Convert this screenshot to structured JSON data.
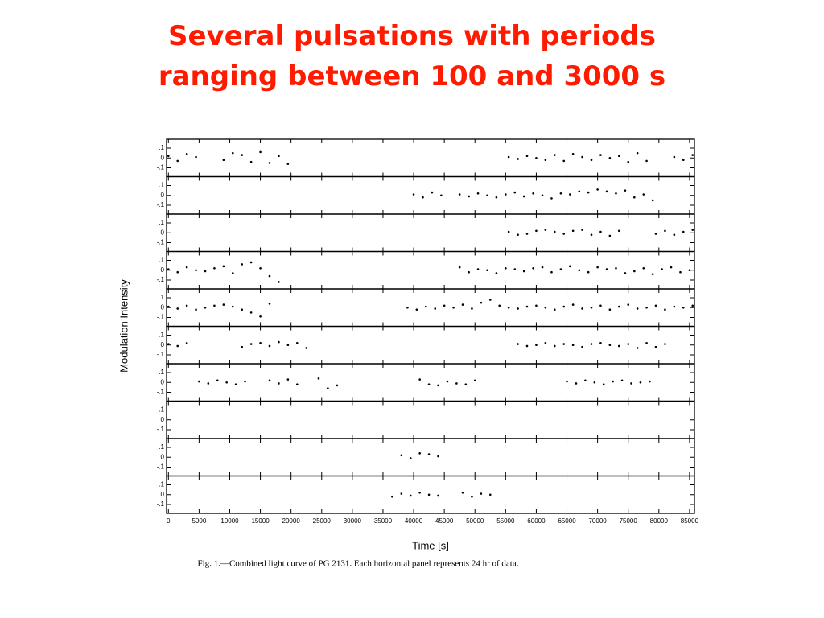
{
  "chart_data": {
    "type": "scatter",
    "title": "Several pulsations with periods ranging between 100 and 3000 s",
    "xlabel": "Time [s]",
    "ylabel": "Modulation Intensity",
    "caption": "Fig. 1.—Combined light curve of PG 2131. Each horizontal panel represents 24 hr of data.",
    "color": "#000000",
    "xlim": [
      -300,
      85800
    ],
    "xticks": [
      0,
      5000,
      10000,
      15000,
      20000,
      25000,
      30000,
      35000,
      40000,
      45000,
      50000,
      55000,
      60000,
      65000,
      70000,
      75000,
      80000,
      85000
    ],
    "ylim": [
      -0.19,
      0.19
    ],
    "yticks": [
      {
        "value": 0.1,
        "label": ".1"
      },
      0,
      {
        "value": -0.1,
        "label": "-.1"
      }
    ],
    "panels": [
      {
        "x": [
          0,
          1500,
          3000,
          4500,
          9000,
          10500,
          12000,
          13500,
          15000,
          16500,
          18000,
          19500,
          55500,
          57000,
          58500,
          60000,
          61500,
          63000,
          64500,
          66000,
          67500,
          69000,
          70500,
          72000,
          73500,
          75000,
          76500,
          78000,
          82500,
          84000,
          85500
        ],
        "y": [
          0.02,
          -0.03,
          0.04,
          0.01,
          -0.02,
          0.05,
          0.03,
          -0.04,
          0.06,
          -0.05,
          0.02,
          -0.06,
          0.01,
          -0.01,
          0.02,
          0,
          -0.02,
          0.03,
          -0.03,
          0.04,
          0.01,
          -0.02,
          0.03,
          0,
          0.02,
          -0.04,
          0.05,
          -0.03,
          0.01,
          -0.02,
          0.03
        ]
      },
      {
        "x": [
          40000,
          41500,
          43000,
          44500,
          47500,
          49000,
          50500,
          52000,
          53500,
          55000,
          56500,
          58000,
          59500,
          61000,
          62500,
          64000,
          65500,
          67000,
          68500,
          70000,
          71500,
          73000,
          74500,
          76000,
          77500,
          79000
        ],
        "y": [
          0.01,
          -0.02,
          0.03,
          0,
          0.01,
          -0.01,
          0.02,
          0,
          -0.02,
          0.01,
          0.03,
          -0.01,
          0.02,
          0,
          -0.03,
          0.02,
          0.01,
          0.04,
          0.03,
          0.06,
          0.04,
          0.02,
          0.05,
          -0.02,
          0.01,
          -0.05
        ]
      },
      {
        "x": [
          55500,
          57000,
          58500,
          60000,
          61500,
          63000,
          64500,
          66000,
          67500,
          69000,
          70500,
          72000,
          73500,
          79500,
          81000,
          82500,
          84000,
          85500
        ],
        "y": [
          0.01,
          -0.02,
          -0.01,
          0.02,
          0.03,
          0.01,
          -0.01,
          0.02,
          0.03,
          -0.02,
          0.01,
          -0.03,
          0.02,
          -0.01,
          0.02,
          -0.02,
          0.01,
          0.03
        ]
      },
      {
        "x": [
          0,
          1500,
          3000,
          4500,
          6000,
          7500,
          9000,
          10500,
          12000,
          13500,
          15000,
          16500,
          18000,
          47500,
          49000,
          50500,
          52000,
          53500,
          55000,
          56500,
          58000,
          59500,
          61000,
          62500,
          64000,
          65500,
          67000,
          68500,
          70000,
          71500,
          73000,
          74500,
          76000,
          77500,
          79000,
          80500,
          82000,
          83500,
          85000
        ],
        "y": [
          0.01,
          -0.02,
          0.03,
          0,
          -0.01,
          0.02,
          0.04,
          -0.03,
          0.06,
          0.08,
          0.02,
          -0.06,
          -0.12,
          0.03,
          -0.02,
          0.01,
          0,
          -0.03,
          0.02,
          0.01,
          -0.01,
          0.02,
          0.03,
          -0.02,
          0.01,
          0.04,
          0,
          -0.02,
          0.03,
          0.01,
          0.02,
          -0.03,
          -0.01,
          0.02,
          -0.04,
          0.01,
          0.03,
          -0.02,
          0
        ]
      },
      {
        "x": [
          0,
          1500,
          3000,
          4500,
          6000,
          7500,
          9000,
          10500,
          12000,
          13500,
          15000,
          16500,
          39000,
          40500,
          42000,
          43500,
          45000,
          46500,
          48000,
          49500,
          51000,
          52500,
          54000,
          55500,
          57000,
          58500,
          60000,
          61500,
          63000,
          64500,
          66000,
          67500,
          69000,
          70500,
          72000,
          73500,
          75000,
          76500,
          78000,
          79500,
          81000,
          82500,
          84000,
          85500
        ],
        "y": [
          0.01,
          -0.01,
          0.02,
          -0.02,
          0,
          0.02,
          0.03,
          0.01,
          -0.02,
          -0.05,
          -0.09,
          0.04,
          0,
          -0.02,
          0.01,
          -0.01,
          0.02,
          0,
          0.03,
          -0.01,
          0.05,
          0.08,
          0.02,
          0,
          -0.01,
          0.01,
          0.02,
          0,
          -0.02,
          0.01,
          0.03,
          -0.01,
          0,
          0.02,
          -0.02,
          0.01,
          0.03,
          -0.01,
          0,
          0.02,
          -0.02,
          0.01,
          0,
          0.02
        ]
      },
      {
        "x": [
          0,
          1500,
          3000,
          12000,
          13500,
          15000,
          16500,
          18000,
          19500,
          21000,
          22500,
          57000,
          58500,
          60000,
          61500,
          63000,
          64500,
          66000,
          67500,
          69000,
          70500,
          72000,
          73500,
          75000,
          76500,
          78000,
          79500,
          81000
        ],
        "y": [
          0.01,
          -0.01,
          0.02,
          -0.02,
          0.01,
          0.02,
          -0.01,
          0.03,
          0,
          0.02,
          -0.03,
          0.01,
          -0.01,
          0,
          0.02,
          -0.01,
          0.01,
          0,
          -0.02,
          0.01,
          0.02,
          0,
          -0.01,
          0.01,
          -0.03,
          0.02,
          -0.02,
          0.01
        ]
      },
      {
        "x": [
          5000,
          6500,
          8000,
          9500,
          11000,
          12500,
          16500,
          18000,
          19500,
          21000,
          24500,
          26000,
          27500,
          41000,
          42500,
          44000,
          45500,
          47000,
          48500,
          50000,
          65000,
          66500,
          68000,
          69500,
          71000,
          72500,
          74000,
          75500,
          77000,
          78500
        ],
        "y": [
          0.01,
          -0.01,
          0.02,
          0,
          -0.02,
          0.01,
          0.02,
          -0.01,
          0.03,
          -0.02,
          0.04,
          -0.06,
          -0.03,
          0.03,
          -0.02,
          -0.03,
          0.01,
          -0.01,
          -0.02,
          0.02,
          0.01,
          -0.01,
          0.02,
          0,
          -0.02,
          0.01,
          0.02,
          -0.01,
          0,
          0.01
        ]
      },
      {
        "x": [],
        "y": []
      },
      {
        "x": [
          38000,
          39500,
          41000,
          42500,
          44000
        ],
        "y": [
          0.02,
          -0.01,
          0.04,
          0.03,
          0.01
        ]
      },
      {
        "x": [
          36500,
          38000,
          39500,
          41000,
          42500,
          44000,
          48000,
          49500,
          51000,
          52500
        ],
        "y": [
          -0.02,
          0.01,
          -0.01,
          0.02,
          0,
          -0.01,
          0.02,
          -0.02,
          0.01,
          0
        ]
      }
    ]
  }
}
